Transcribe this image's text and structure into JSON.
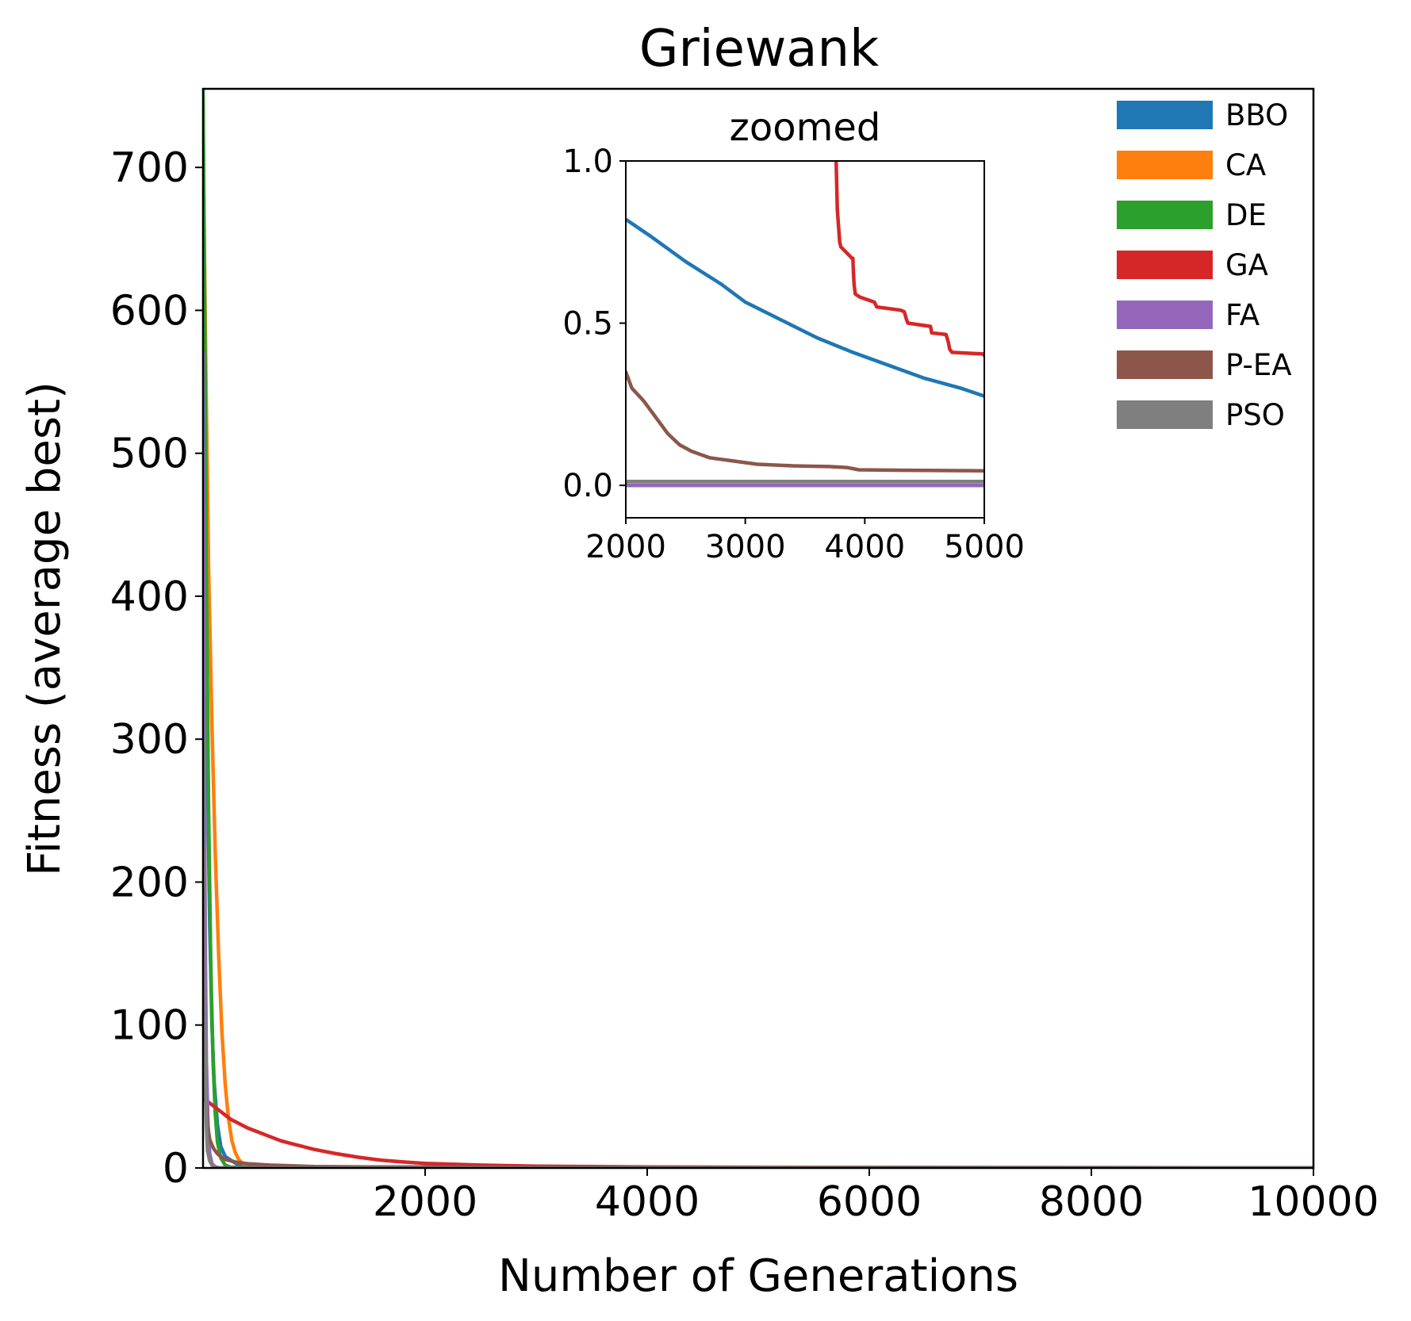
{
  "chart_data": [
    {
      "type": "line",
      "title": "Griewank",
      "xlabel": "Number of Generations",
      "ylabel": "Fitness (average best)",
      "xlim": [
        0,
        10000
      ],
      "ylim": [
        0,
        755
      ],
      "xticks": [
        2000,
        4000,
        6000,
        8000,
        10000
      ],
      "yticks": [
        0,
        100,
        200,
        300,
        400,
        500,
        600,
        700
      ],
      "grid": false,
      "legend": "top-right",
      "series": [
        {
          "name": "BBO",
          "color": "#1f77b4",
          "x": [
            0,
            20,
            40,
            60,
            80,
            100,
            130,
            160,
            200,
            300,
            500,
            1000,
            10000
          ],
          "y": [
            640,
            430,
            280,
            170,
            100,
            60,
            30,
            15,
            8,
            3,
            1.2,
            0.8,
            0.05
          ]
        },
        {
          "name": "CA",
          "color": "#ff7f0e",
          "x": [
            0,
            25,
            50,
            80,
            110,
            140,
            170,
            200,
            230,
            260,
            290,
            320,
            360,
            420,
            500,
            700,
            10000
          ],
          "y": [
            720,
            560,
            420,
            310,
            220,
            150,
            95,
            58,
            34,
            19,
            11,
            6,
            3,
            1.5,
            0.8,
            0.2,
            0
          ]
        },
        {
          "name": "DE",
          "color": "#2ca02c",
          "x": [
            0,
            15,
            30,
            50,
            70,
            90,
            110,
            130,
            160,
            200,
            250,
            10000
          ],
          "y": [
            755,
            600,
            420,
            250,
            140,
            75,
            38,
            18,
            7,
            2,
            0.5,
            0
          ]
        },
        {
          "name": "GA",
          "color": "#d62728",
          "x": [
            0,
            50,
            100,
            150,
            200,
            250,
            300,
            350,
            400,
            500,
            600,
            700,
            800,
            900,
            1000,
            1200,
            1400,
            1600,
            1800,
            2000,
            2500,
            3000,
            4000,
            5000,
            7000,
            10000
          ],
          "y": [
            48,
            46,
            43,
            40,
            37,
            34,
            32,
            30,
            28,
            25,
            22,
            19,
            17,
            15,
            13,
            10,
            7.5,
            5.5,
            4.2,
            3.2,
            2,
            1.3,
            0.7,
            0.4,
            0.2,
            0.1
          ]
        },
        {
          "name": "FA",
          "color": "#9467bd",
          "x": [
            0,
            10,
            20,
            30,
            45,
            60,
            80,
            110,
            150,
            10000
          ],
          "y": [
            570,
            320,
            160,
            75,
            30,
            10,
            3,
            0.8,
            0.1,
            0
          ]
        },
        {
          "name": "P-EA",
          "color": "#8c564b",
          "x": [
            0,
            20,
            40,
            60,
            80,
            100,
            130,
            160,
            200,
            300,
            400,
            600,
            1000,
            2000,
            10000
          ],
          "y": [
            110,
            55,
            30,
            20,
            16,
            13,
            10,
            8,
            6,
            4,
            3,
            2,
            1,
            0.35,
            0.03
          ]
        },
        {
          "name": "PSO",
          "color": "#7f7f7f",
          "x": [
            0,
            10,
            20,
            30,
            40,
            60,
            80,
            100,
            130,
            10000
          ],
          "y": [
            300,
            150,
            70,
            30,
            12,
            5,
            2,
            0.8,
            0.1,
            0.01
          ]
        }
      ]
    },
    {
      "type": "line",
      "title": "zoomed",
      "xlabel": "",
      "ylabel": "",
      "xlim": [
        2000,
        5000
      ],
      "ylim": [
        -0.1,
        1.0
      ],
      "xticks": [
        2000,
        3000,
        4000,
        5000
      ],
      "yticks": [
        0.0,
        0.5,
        1.0
      ],
      "ytick_labels": [
        "0.0",
        "0.5",
        "1.0"
      ],
      "grid": false,
      "series": [
        {
          "name": "BBO",
          "color": "#1f77b4",
          "x": [
            2000,
            2200,
            2500,
            2800,
            3000,
            3300,
            3600,
            3900,
            4200,
            4500,
            4800,
            5000
          ],
          "y": [
            0.82,
            0.77,
            0.69,
            0.62,
            0.565,
            0.51,
            0.455,
            0.41,
            0.37,
            0.33,
            0.3,
            0.275
          ]
        },
        {
          "name": "CA",
          "color": "#ff7f0e",
          "x": [
            2000,
            5000
          ],
          "y": [
            0.0,
            0.0
          ]
        },
        {
          "name": "DE",
          "color": "#2ca02c",
          "x": [
            2000,
            5000
          ],
          "y": [
            0.0,
            0.0
          ]
        },
        {
          "name": "GA",
          "color": "#d62728",
          "x": [
            3760,
            3770,
            3790,
            3800,
            3880,
            3890,
            3900,
            3905,
            3910,
            3920,
            3940,
            3960,
            4080,
            4100,
            4300,
            4330,
            4350,
            4360,
            4550,
            4560,
            4680,
            4700,
            4710,
            4730,
            4990,
            5000
          ],
          "y": [
            1.0,
            0.85,
            0.75,
            0.735,
            0.705,
            0.7,
            0.7,
            0.66,
            0.62,
            0.59,
            0.585,
            0.58,
            0.565,
            0.55,
            0.54,
            0.535,
            0.51,
            0.5,
            0.49,
            0.47,
            0.465,
            0.44,
            0.42,
            0.41,
            0.405,
            0.4
          ]
        },
        {
          "name": "FA",
          "color": "#9467bd",
          "x": [
            2000,
            5000
          ],
          "y": [
            0.0,
            0.0
          ]
        },
        {
          "name": "P-EA",
          "color": "#8c564b",
          "x": [
            2000,
            2050,
            2150,
            2250,
            2350,
            2450,
            2550,
            2700,
            2900,
            3100,
            3400,
            3700,
            3850,
            3950,
            4500,
            5000
          ],
          "y": [
            0.35,
            0.3,
            0.26,
            0.21,
            0.16,
            0.125,
            0.105,
            0.085,
            0.075,
            0.065,
            0.06,
            0.058,
            0.055,
            0.048,
            0.046,
            0.045
          ]
        },
        {
          "name": "PSO",
          "color": "#7f7f7f",
          "x": [
            2000,
            5000
          ],
          "y": [
            0.012,
            0.012
          ]
        }
      ]
    }
  ]
}
